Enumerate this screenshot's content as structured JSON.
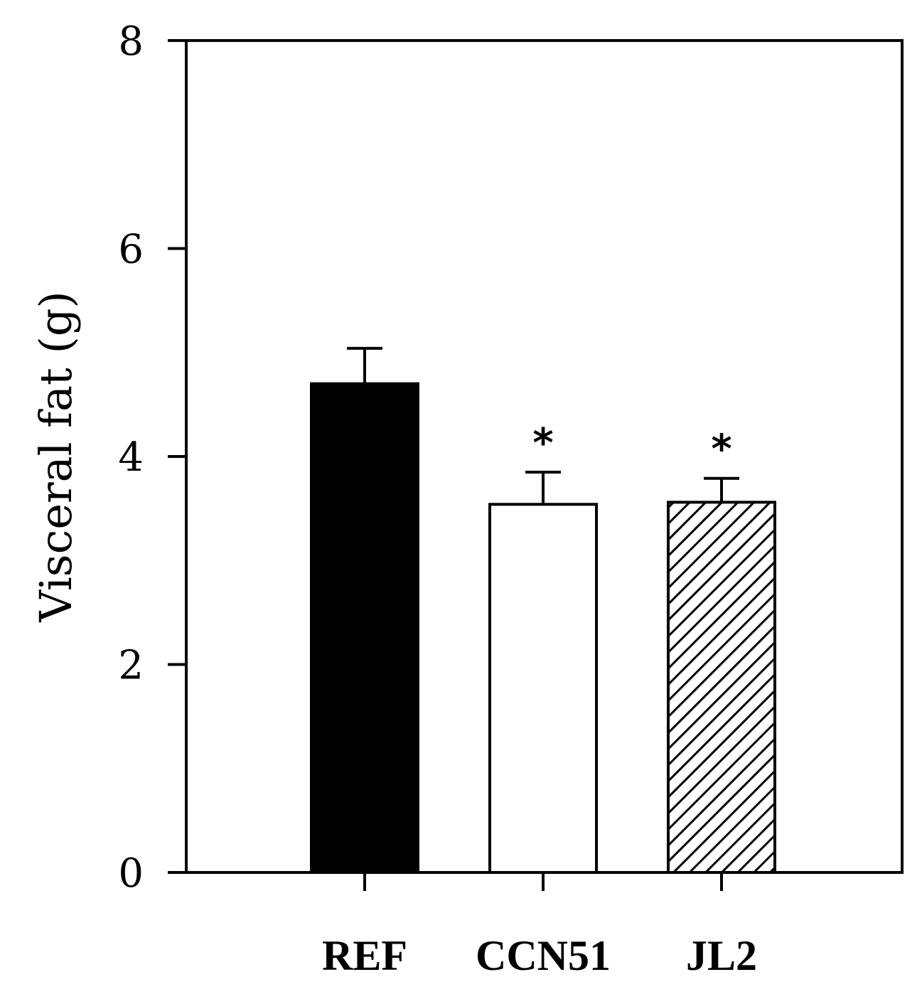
{
  "chart_data": {
    "type": "bar",
    "title": "",
    "xlabel": "",
    "ylabel": "Visceral fat (g)",
    "ylim": [
      0,
      8
    ],
    "yticks": [
      0,
      2,
      4,
      6,
      8
    ],
    "ytick_labels": [
      "0",
      "2",
      "4",
      "6",
      "8"
    ],
    "categories": [
      "REF",
      "CCN51",
      "JL2"
    ],
    "values": [
      4.7,
      3.54,
      3.56
    ],
    "errors": [
      0.34,
      0.31,
      0.23
    ],
    "annotations": [
      "",
      "*",
      "*"
    ],
    "fills": [
      "solid-black",
      "white",
      "diagonal-hatch"
    ],
    "grid": false,
    "legend": "none"
  },
  "colors": {
    "bar_solid": "#000000",
    "outline": "#000000",
    "background": "#ffffff"
  }
}
